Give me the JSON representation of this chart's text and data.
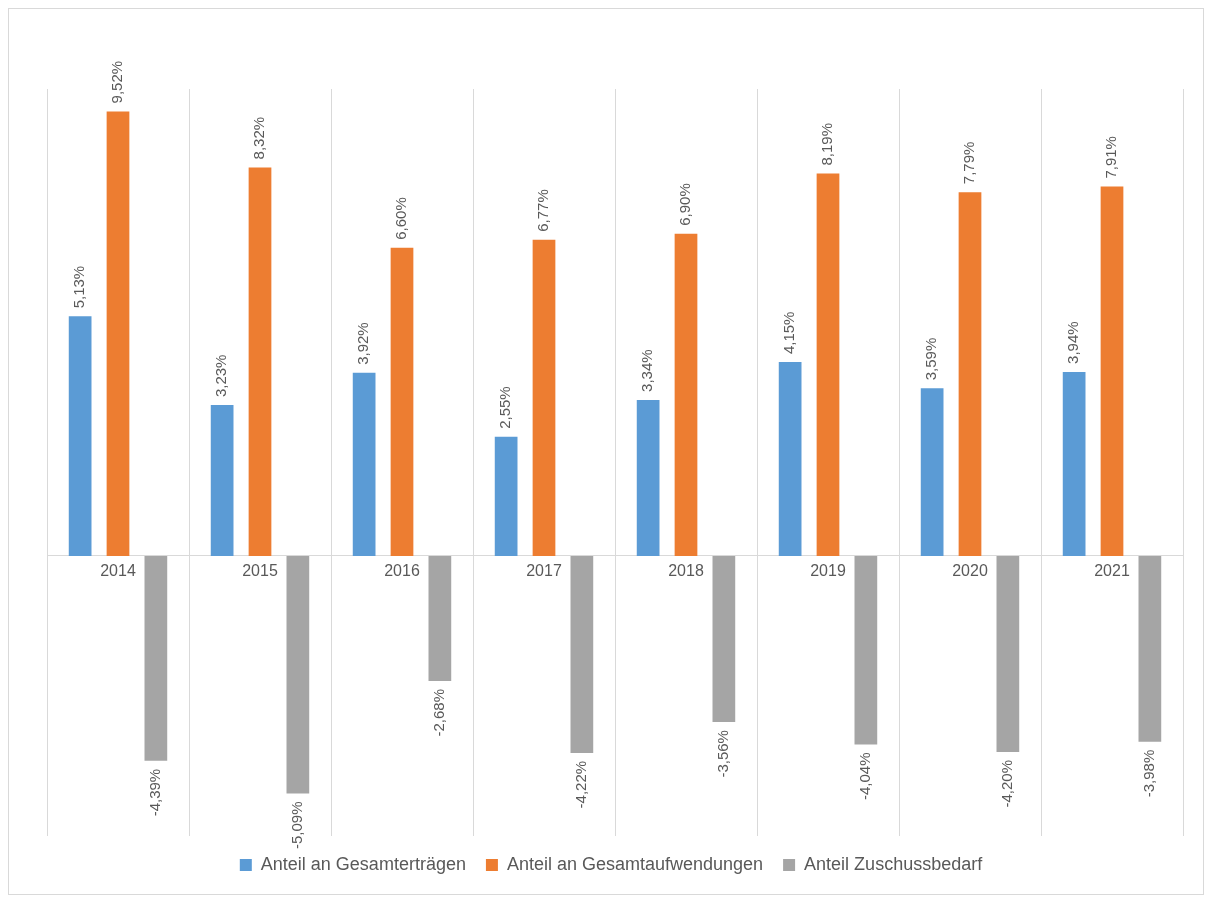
{
  "chart_data": {
    "type": "bar",
    "categories": [
      "2014",
      "2015",
      "2016",
      "2017",
      "2018",
      "2019",
      "2020",
      "2021"
    ],
    "series": [
      {
        "name": "Anteil an Gesamterträgen",
        "color": "#5b9bd5",
        "values": [
          5.13,
          3.23,
          3.92,
          2.55,
          3.34,
          4.15,
          3.59,
          3.94
        ],
        "value_labels": [
          "5,13%",
          "3,23%",
          "3,92%",
          "2,55%",
          "3,34%",
          "4,15%",
          "3,59%",
          "3,94%"
        ]
      },
      {
        "name": "Anteil an Gesamtaufwendungen",
        "color": "#ed7d31",
        "values": [
          9.52,
          8.32,
          6.6,
          6.77,
          6.9,
          8.19,
          7.79,
          7.91
        ],
        "value_labels": [
          "9,52%",
          "8,32%",
          "6,60%",
          "6,77%",
          "6,90%",
          "8,19%",
          "7,79%",
          "7,91%"
        ]
      },
      {
        "name": "Anteil Zuschussbedarf",
        "color": "#a5a5a5",
        "values": [
          -4.39,
          -5.09,
          -2.68,
          -4.22,
          -3.56,
          -4.04,
          -4.2,
          -3.98
        ],
        "value_labels": [
          "-4,39%",
          "-5,09%",
          "-2,68%",
          "-4,22%",
          "-3,56%",
          "-4,04%",
          "-4,20%",
          "-3,98%"
        ]
      }
    ],
    "grid": "x",
    "legend": "bottom"
  }
}
